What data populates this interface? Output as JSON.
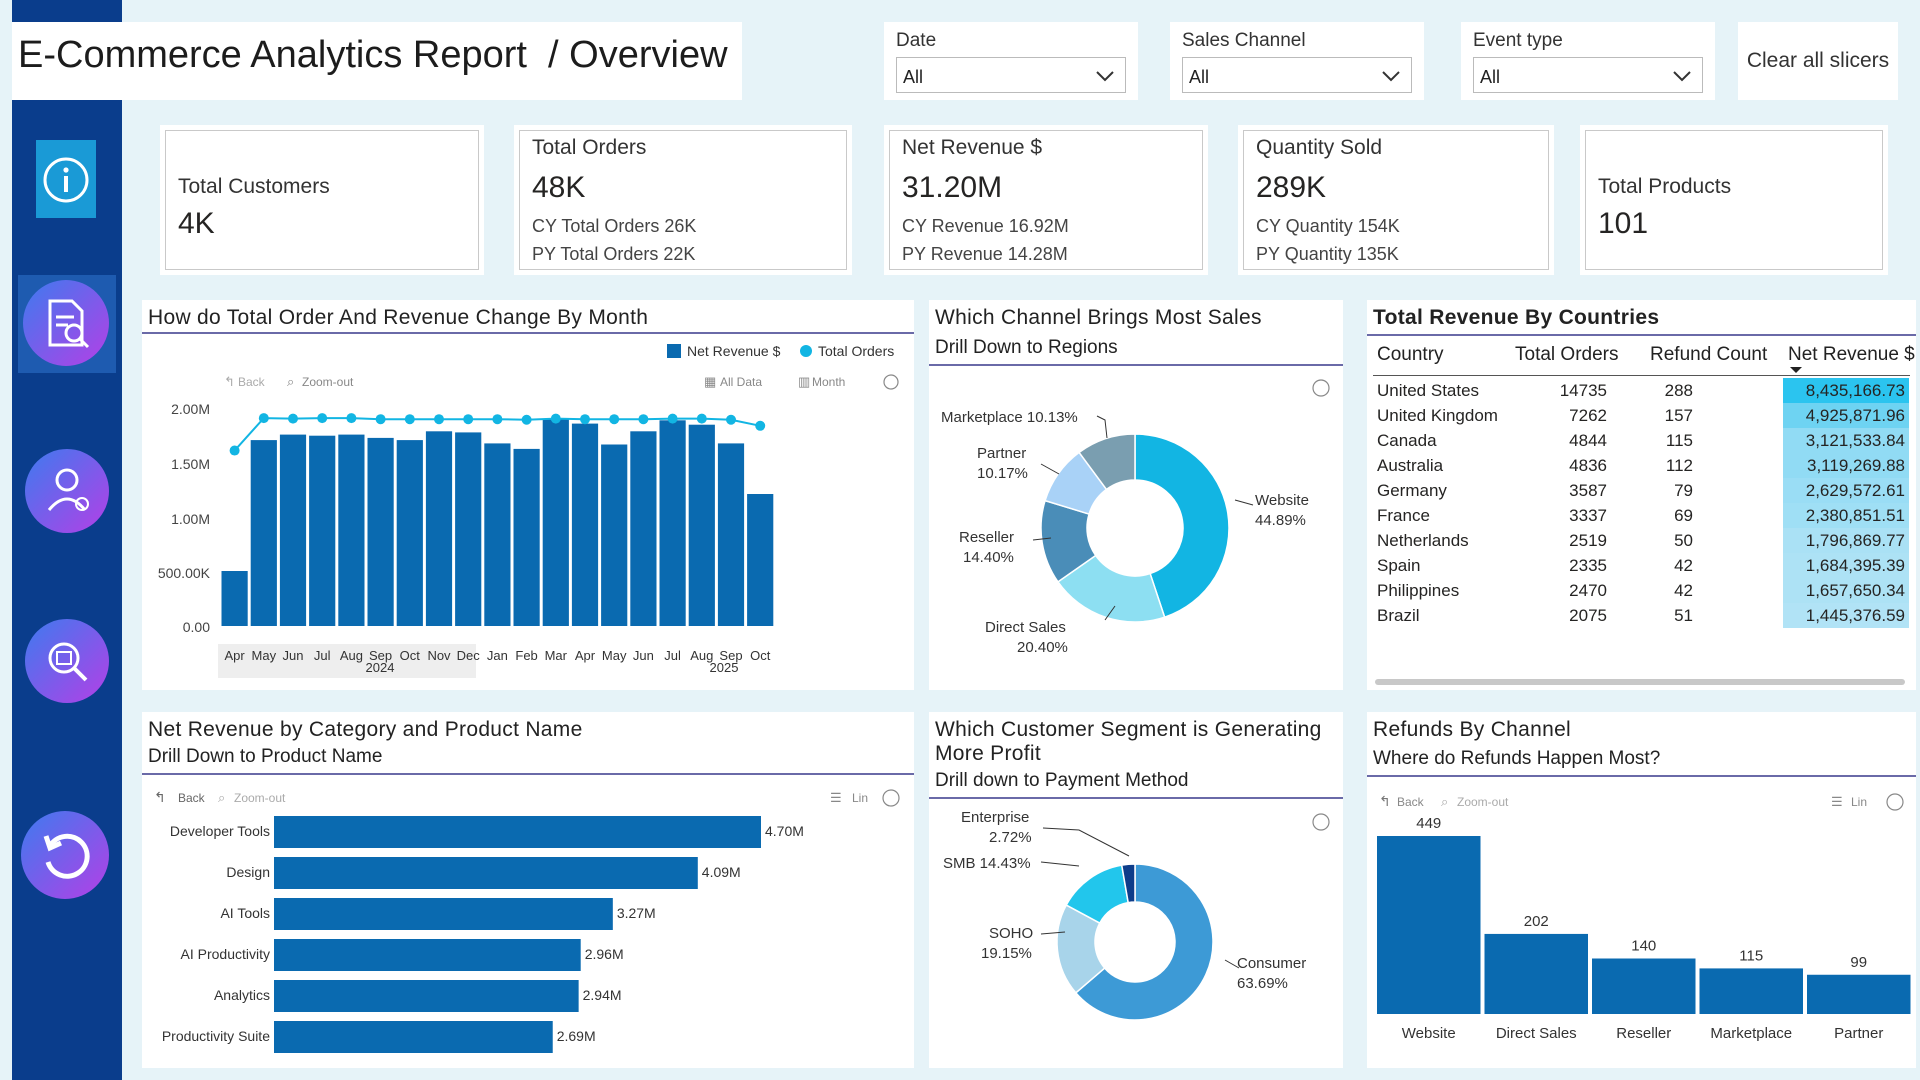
{
  "header": {
    "title": "E-Commerce Analytics Report  / Overview",
    "clear_label": "Clear all slicers"
  },
  "slicers": [
    {
      "label": "Date",
      "value": "All"
    },
    {
      "label": "Sales Channel",
      "value": "All"
    },
    {
      "label": "Event type",
      "value": "All"
    }
  ],
  "nav_icons": [
    "info-icon",
    "report-search-icon",
    "customer-icon",
    "product-search-icon",
    "reset-icon"
  ],
  "kpis": [
    {
      "title": "Total Customers",
      "value": "4K"
    },
    {
      "title": "Total Orders",
      "value": "48K",
      "line1": "CY Total Orders 26K",
      "line2": "PY Total Orders 22K"
    },
    {
      "title": "Net Revenue $",
      "value": "31.20M",
      "line1": "CY Revenue 16.92M",
      "line2": "PY Revenue 14.28M"
    },
    {
      "title": "Quantity Sold",
      "value": "289K",
      "line1": "CY Quantity 154K",
      "line2": "PY Quantity 135K"
    },
    {
      "title": "Total Products",
      "value": "101"
    }
  ],
  "monthly_panel": {
    "title": "How do Total Order And Revenue Change By Month",
    "legend_revenue": "Net Revenue $",
    "legend_orders": "Total Orders",
    "back": "Back",
    "zoom_out": "Zoom-out",
    "all_data": "All Data",
    "month": "Month",
    "y_ticks": [
      "2.00M",
      "1.50M",
      "1.00M",
      "500.00K",
      "0.00"
    ],
    "year1": "2024",
    "year2": "2025"
  },
  "channel_panel": {
    "title": "Which Channel Brings Most Sales",
    "subtitle": "Drill Down to Regions",
    "labels": {
      "marketplace": "Marketplace 10.13%",
      "partner_name": "Partner",
      "partner_pct": "10.17%",
      "reseller_name": "Reseller",
      "reseller_pct": "14.40%",
      "direct_name": "Direct Sales",
      "direct_pct": "20.40%",
      "website_name": "Website",
      "website_pct": "44.89%"
    }
  },
  "countries_panel": {
    "title": "Total Revenue By Countries",
    "headers": [
      "Country",
      "Total Orders",
      "Refund Count",
      "Net Revenue $"
    ],
    "rows": [
      {
        "country": "United States",
        "orders": "14735",
        "refunds": "288",
        "revenue": "8,435,166.73"
      },
      {
        "country": "United Kingdom",
        "orders": "7262",
        "refunds": "157",
        "revenue": "4,925,871.96"
      },
      {
        "country": "Canada",
        "orders": "4844",
        "refunds": "115",
        "revenue": "3,121,533.84"
      },
      {
        "country": "Australia",
        "orders": "4836",
        "refunds": "112",
        "revenue": "3,119,269.88"
      },
      {
        "country": "Germany",
        "orders": "3587",
        "refunds": "79",
        "revenue": "2,629,572.61"
      },
      {
        "country": "France",
        "orders": "3337",
        "refunds": "69",
        "revenue": "2,380,851.51"
      },
      {
        "country": "Netherlands",
        "orders": "2519",
        "refunds": "50",
        "revenue": "1,796,869.77"
      },
      {
        "country": "Spain",
        "orders": "2335",
        "refunds": "42",
        "revenue": "1,684,395.39"
      },
      {
        "country": "Philippines",
        "orders": "2470",
        "refunds": "42",
        "revenue": "1,657,650.34"
      },
      {
        "country": "Brazil",
        "orders": "2075",
        "refunds": "51",
        "revenue": "1,445,376.59"
      }
    ]
  },
  "category_panel": {
    "title": "Net Revenue by Category and Product Name",
    "subtitle": "Drill Down to Product Name",
    "back": "Back",
    "zoom_out": "Zoom-out",
    "lin": "Lin"
  },
  "segment_panel": {
    "title_line1": "Which Customer Segment is Generating",
    "title_line2": "More Profit",
    "subtitle": "Drill down to Payment Method",
    "labels": {
      "enterprise_name": "Enterprise",
      "enterprise_pct": "2.72%",
      "smb": "SMB 14.43%",
      "soho_name": "SOHO",
      "soho_pct": "19.15%",
      "consumer_name": "Consumer",
      "consumer_pct": "63.69%"
    }
  },
  "refunds_panel": {
    "title": "Refunds By Channel",
    "subtitle": "Where do Refunds Happen Most?",
    "back": "Back",
    "zoom_out": "Zoom-out",
    "lin": "Lin"
  },
  "colors": {
    "bar": "#0a6ab0",
    "line": "#12b5e3",
    "sidebar": "#0a3d8c",
    "highlight": "#2bc4ef"
  },
  "chart_data": [
    {
      "type": "bar",
      "title": "How do Total Order And Revenue Change By Month",
      "categories": [
        "Apr",
        "May",
        "Jun",
        "Jul",
        "Aug",
        "Sep",
        "Oct",
        "Nov",
        "Dec",
        "Jan",
        "Feb",
        "Mar",
        "Apr",
        "May",
        "Jun",
        "Jul",
        "Aug",
        "Sep",
        "Oct"
      ],
      "series": [
        {
          "name": "Net Revenue $",
          "type": "bar",
          "values": [
            500000,
            1690000,
            1740000,
            1730000,
            1740000,
            1710000,
            1690000,
            1770000,
            1760000,
            1660000,
            1610000,
            1880000,
            1840000,
            1650000,
            1770000,
            1870000,
            1830000,
            1660000,
            1200000
          ]
        },
        {
          "name": "Total Orders",
          "type": "line",
          "values": [
            1595000,
            1890000,
            1885000,
            1890000,
            1890000,
            1880000,
            1880000,
            1880000,
            1880000,
            1880000,
            1875000,
            1885000,
            1880000,
            1880000,
            1880000,
            1885000,
            1885000,
            1875000,
            1820000
          ]
        }
      ],
      "ylim": [
        0,
        2000000
      ],
      "year_groups": [
        "2024",
        "2025"
      ]
    },
    {
      "type": "pie",
      "title": "Which Channel Brings Most Sales",
      "categories": [
        "Website",
        "Direct Sales",
        "Reseller",
        "Partner",
        "Marketplace"
      ],
      "values": [
        44.89,
        20.4,
        14.4,
        10.17,
        10.13
      ],
      "colors": [
        "#12b5e3",
        "#8ddff2",
        "#4a8db8",
        "#a9d2f7",
        "#7a9eb0"
      ]
    },
    {
      "type": "table",
      "title": "Total Revenue By Countries",
      "columns": [
        "Country",
        "Total Orders",
        "Refund Count",
        "Net Revenue $"
      ]
    },
    {
      "type": "bar",
      "orientation": "horizontal",
      "title": "Net Revenue by Category and Product Name",
      "categories": [
        "Developer Tools",
        "Design",
        "AI Tools",
        "AI Productivity",
        "Analytics",
        "Productivity Suite"
      ],
      "values": [
        4.7,
        4.09,
        3.27,
        2.96,
        2.94,
        2.69
      ],
      "labels": [
        "4.70M",
        "4.09M",
        "3.27M",
        "2.96M",
        "2.94M",
        "2.69M"
      ],
      "xlim": [
        0,
        4.7
      ]
    },
    {
      "type": "pie",
      "title": "Which Customer Segment is Generating More Profit",
      "categories": [
        "Consumer",
        "SOHO",
        "SMB",
        "Enterprise"
      ],
      "values": [
        63.69,
        19.15,
        14.43,
        2.72
      ],
      "colors": [
        "#3d9ad6",
        "#a8d4ea",
        "#22c6ec",
        "#0e3d8a"
      ]
    },
    {
      "type": "bar",
      "title": "Refunds By Channel",
      "categories": [
        "Website",
        "Direct Sales",
        "Reseller",
        "Marketplace",
        "Partner"
      ],
      "values": [
        449,
        202,
        140,
        115,
        99
      ],
      "ylim": [
        0,
        449
      ]
    }
  ]
}
